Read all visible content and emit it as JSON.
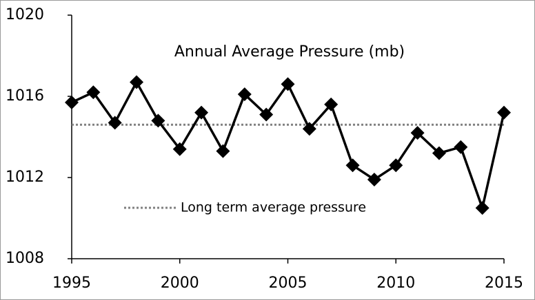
{
  "chart_data": {
    "type": "line",
    "title": "Annual Average Pressure (mb)",
    "x": [
      1995,
      1996,
      1997,
      1998,
      1999,
      2000,
      2001,
      2002,
      2003,
      2004,
      2005,
      2006,
      2007,
      2008,
      2009,
      2010,
      2011,
      2012,
      2013,
      2014,
      2015
    ],
    "series": [
      {
        "color": "#000000",
        "values": [
          1015.7,
          1016.2,
          1014.7,
          1016.7,
          1014.8,
          1013.4,
          1015.2,
          1013.3,
          1016.1,
          1015.1,
          1016.6,
          1014.4,
          1015.6,
          1012.6,
          1011.9,
          1012.6,
          1014.2,
          1013.2,
          1013.5,
          1010.5,
          1015.2
        ]
      }
    ],
    "average": {
      "name": "Long term average pressure",
      "value": 1014.6,
      "color": "#808080"
    },
    "xlim": [
      1995,
      2015
    ],
    "xticks": [
      1995,
      2000,
      2005,
      2010,
      2015
    ],
    "ylim": [
      1008,
      1020
    ],
    "yticks": [
      1008,
      1012,
      1016,
      1020
    ]
  }
}
